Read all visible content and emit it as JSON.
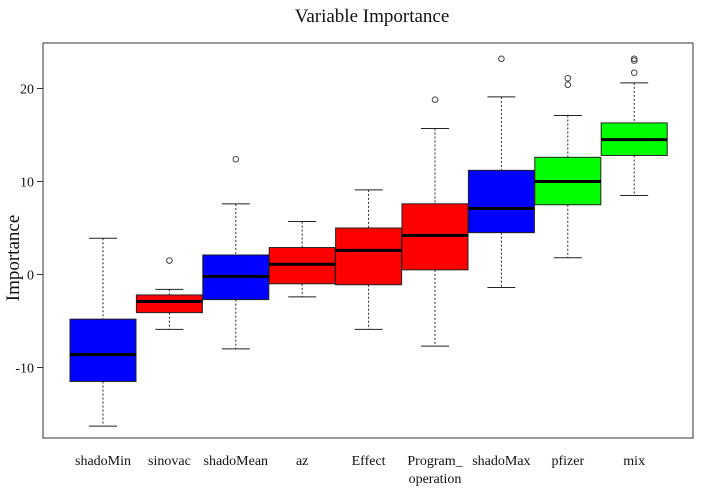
{
  "chart_data": {
    "type": "boxplot",
    "title": "Variable Importance",
    "xlabel": "",
    "ylabel": "Importance",
    "ylim": [
      -17.5,
      25
    ],
    "yticks": [
      -10,
      0,
      10,
      20
    ],
    "grid": false,
    "legend": "none",
    "categories": [
      {
        "label": "shadoMin",
        "label2": "",
        "color": "#0000ff",
        "min": -16.3,
        "q1": -11.5,
        "median": -8.6,
        "q3": -4.8,
        "max": 3.9,
        "outliers": []
      },
      {
        "label": "sinovac",
        "label2": "",
        "color": "#ff0000",
        "min": -5.9,
        "q1": -4.1,
        "median": -2.9,
        "q3": -2.2,
        "max": -1.6,
        "outliers": [
          1.5
        ]
      },
      {
        "label": "shadoMean",
        "label2": "",
        "color": "#0000ff",
        "min": -8.0,
        "q1": -2.7,
        "median": -0.2,
        "q3": 2.1,
        "max": 7.6,
        "outliers": [
          12.4
        ]
      },
      {
        "label": "az",
        "label2": "",
        "color": "#ff0000",
        "min": -2.4,
        "q1": -1.0,
        "median": 1.1,
        "q3": 2.9,
        "max": 5.7,
        "outliers": []
      },
      {
        "label": "Effect",
        "label2": "",
        "color": "#ff0000",
        "min": -5.9,
        "q1": -1.1,
        "median": 2.6,
        "q3": 5.0,
        "max": 9.1,
        "outliers": []
      },
      {
        "label": "Program_",
        "label2": "operation",
        "color": "#ff0000",
        "min": -7.7,
        "q1": 0.5,
        "median": 4.2,
        "q3": 7.6,
        "max": 15.7,
        "outliers": [
          18.8
        ]
      },
      {
        "label": "shadoMax",
        "label2": "",
        "color": "#0000ff",
        "min": -1.4,
        "q1": 4.5,
        "median": 7.1,
        "q3": 11.2,
        "max": 19.1,
        "outliers": [
          23.2
        ]
      },
      {
        "label": "pfizer",
        "label2": "",
        "color": "#00ff00",
        "min": 1.8,
        "q1": 7.5,
        "median": 10.0,
        "q3": 12.6,
        "max": 17.1,
        "outliers": [
          20.4,
          21.1
        ]
      },
      {
        "label": "mix",
        "label2": "",
        "color": "#00ff00",
        "min": 8.5,
        "q1": 12.8,
        "median": 14.5,
        "q3": 16.3,
        "max": 20.6,
        "outliers": [
          21.7,
          23.0,
          23.2
        ]
      }
    ]
  }
}
